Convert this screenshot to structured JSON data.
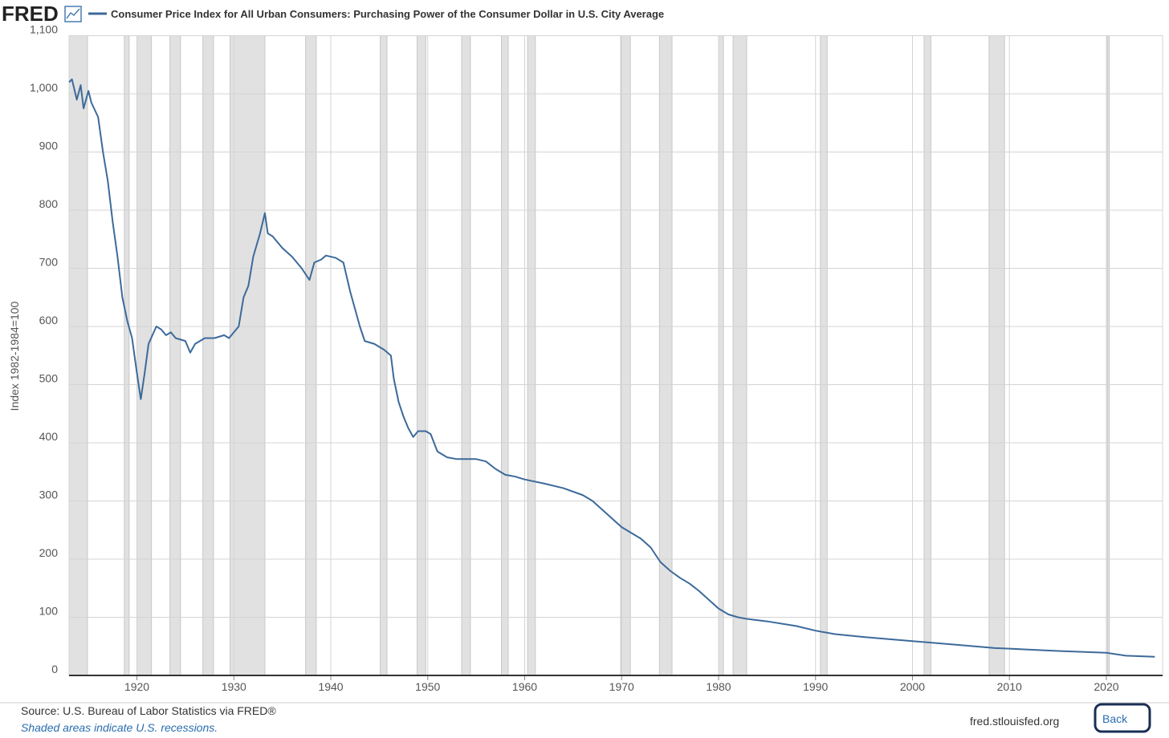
{
  "brand": "FRED",
  "chart_data": {
    "type": "line",
    "y_label": "Index 1982-1984=100",
    "x": [
      1913.0,
      1913.3,
      1913.8,
      1914.2,
      1914.5,
      1915.0,
      1915.3,
      1916.0,
      1916.5,
      1917.0,
      1917.5,
      1918.0,
      1918.5,
      1919.0,
      1919.5,
      1920.0,
      1920.4,
      1920.8,
      1921.2,
      1921.6,
      1922.0,
      1922.5,
      1923.0,
      1923.5,
      1924.0,
      1925.0,
      1925.5,
      1926.0,
      1927.0,
      1928.0,
      1929.0,
      1929.5,
      1930.5,
      1931.0,
      1931.5,
      1932.0,
      1932.7,
      1933.2,
      1933.5,
      1934.0,
      1935.0,
      1936.0,
      1937.0,
      1937.8,
      1938.3,
      1939.0,
      1939.5,
      1940.5,
      1941.3,
      1942.0,
      1942.5,
      1943.0,
      1943.5,
      1944.5,
      1945.5,
      1946.2,
      1946.5,
      1947.0,
      1947.5,
      1948.0,
      1948.5,
      1949.0,
      1949.8,
      1950.3,
      1951.0,
      1952.0,
      1953.0,
      1954.0,
      1955.0,
      1956.0,
      1957.0,
      1958.0,
      1959.0,
      1960.0,
      1962.0,
      1964.0,
      1966.0,
      1967.0,
      1968.0,
      1969.0,
      1970.0,
      1971.0,
      1972.0,
      1973.0,
      1974.0,
      1975.0,
      1976.0,
      1977.0,
      1978.0,
      1979.0,
      1980.0,
      1981.0,
      1982.0,
      1983.0,
      1985.0,
      1988.0,
      1990.0,
      1992.0,
      1995.0,
      2000.0,
      2005.0,
      2008.5,
      2010.0,
      2015.0,
      2020.0,
      2022.0,
      2025.0
    ],
    "series": [
      {
        "name": "Consumer Price Index for All Urban Consumers: Purchasing Power of the Consumer Dollar in U.S. City Average",
        "color": "#3c6a9a",
        "values": [
          1020,
          1025,
          990,
          1015,
          975,
          1005,
          985,
          960,
          900,
          850,
          780,
          720,
          650,
          610,
          580,
          520,
          475,
          520,
          570,
          585,
          600,
          595,
          585,
          590,
          580,
          575,
          555,
          570,
          580,
          580,
          585,
          580,
          600,
          650,
          670,
          720,
          760,
          795,
          760,
          755,
          735,
          720,
          700,
          680,
          710,
          715,
          722,
          718,
          710,
          660,
          630,
          600,
          575,
          570,
          560,
          550,
          510,
          470,
          445,
          425,
          410,
          420,
          420,
          415,
          385,
          375,
          372,
          372,
          372,
          368,
          355,
          345,
          342,
          337,
          330,
          322,
          310,
          300,
          285,
          270,
          255,
          245,
          235,
          220,
          195,
          180,
          168,
          158,
          145,
          130,
          115,
          105,
          100,
          97,
          93,
          85,
          77,
          71,
          66,
          59,
          52,
          47,
          46,
          42,
          39,
          34,
          32
        ]
      }
    ],
    "xlim": [
      1913,
      2025.8
    ],
    "ylim": [
      0,
      1100
    ],
    "xticks": [
      1920,
      1930,
      1940,
      1950,
      1960,
      1970,
      1980,
      1990,
      2000,
      2010,
      2020
    ],
    "yticks": [
      0,
      100,
      200,
      300,
      400,
      500,
      600,
      700,
      800,
      900,
      {
        "value": 1000,
        "label": "1,000"
      },
      {
        "value": 1100,
        "label": "1,100"
      }
    ],
    "recessions": [
      [
        1913.0,
        1914.9
      ],
      [
        1918.7,
        1919.2
      ],
      [
        1920.0,
        1921.5
      ],
      [
        1923.4,
        1924.5
      ],
      [
        1926.8,
        1927.9
      ],
      [
        1929.6,
        1933.2
      ],
      [
        1937.4,
        1938.5
      ],
      [
        1945.1,
        1945.8
      ],
      [
        1948.9,
        1949.8
      ],
      [
        1953.5,
        1954.4
      ],
      [
        1957.6,
        1958.3
      ],
      [
        1960.3,
        1961.1
      ],
      [
        1969.9,
        1970.9
      ],
      [
        1973.9,
        1975.2
      ],
      [
        1980.0,
        1980.5
      ],
      [
        1981.5,
        1982.9
      ],
      [
        1990.5,
        1991.2
      ],
      [
        2001.2,
        2001.9
      ],
      [
        2007.9,
        2009.5
      ],
      [
        2020.1,
        2020.3
      ]
    ],
    "grid": true
  },
  "footer": {
    "source": "Source: U.S. Bureau of Labor Statistics via FRED®",
    "note": "Shaded areas indicate U.S. recessions.",
    "site": "fred.stlouisfed.org",
    "back": "Back"
  }
}
